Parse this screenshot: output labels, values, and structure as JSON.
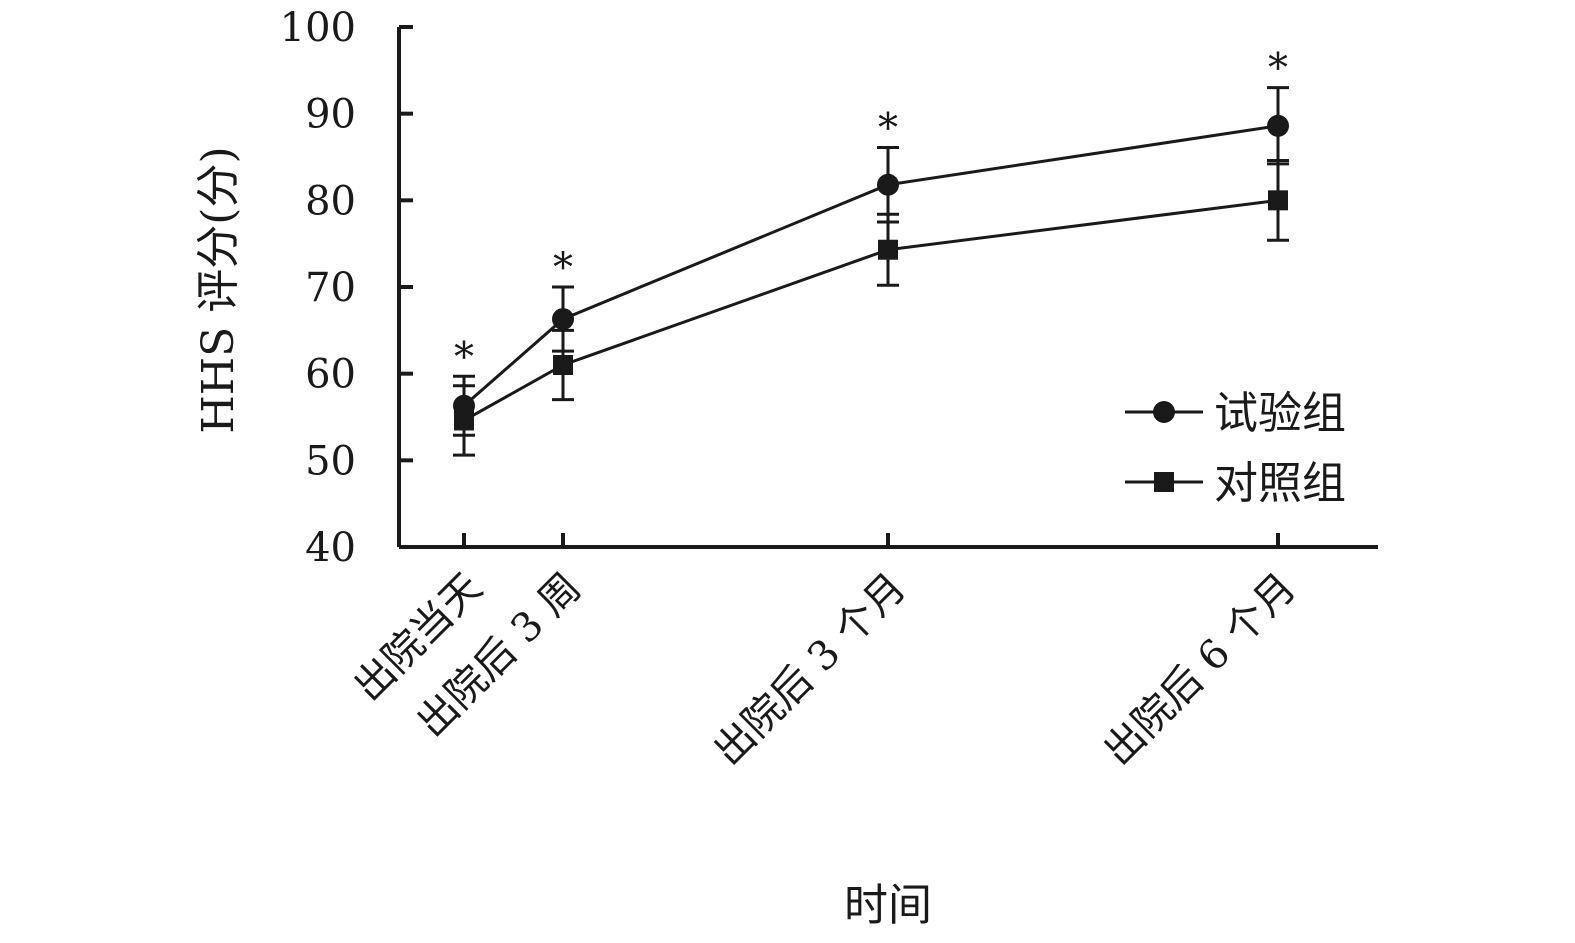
{
  "chart_data": {
    "type": "line",
    "title": "",
    "xlabel": "时间",
    "ylabel": "HHS 评分(分)",
    "ylim": [
      40,
      100
    ],
    "yticks": [
      40,
      50,
      60,
      70,
      80,
      90,
      100
    ],
    "x": [
      0,
      0.75,
      3,
      6
    ],
    "categories": [
      "出院当天",
      "出院后 3 周",
      "出院后 3 个月",
      "出院后 6 个月"
    ],
    "grid": false,
    "legend_position": "right",
    "series": [
      {
        "name": "试验组",
        "marker": "circle",
        "values": [
          56.3,
          66.3,
          81.8,
          88.6
        ],
        "errors": [
          3.4,
          3.7,
          4.3,
          4.4
        ],
        "significant": [
          true,
          true,
          true,
          true
        ]
      },
      {
        "name": "对照组",
        "marker": "square",
        "values": [
          54.6,
          61.0,
          74.3,
          80.0
        ],
        "errors": [
          4.0,
          4.0,
          4.1,
          4.6
        ]
      }
    ],
    "annotation_symbol": "*",
    "color": "#1a1a1a"
  }
}
